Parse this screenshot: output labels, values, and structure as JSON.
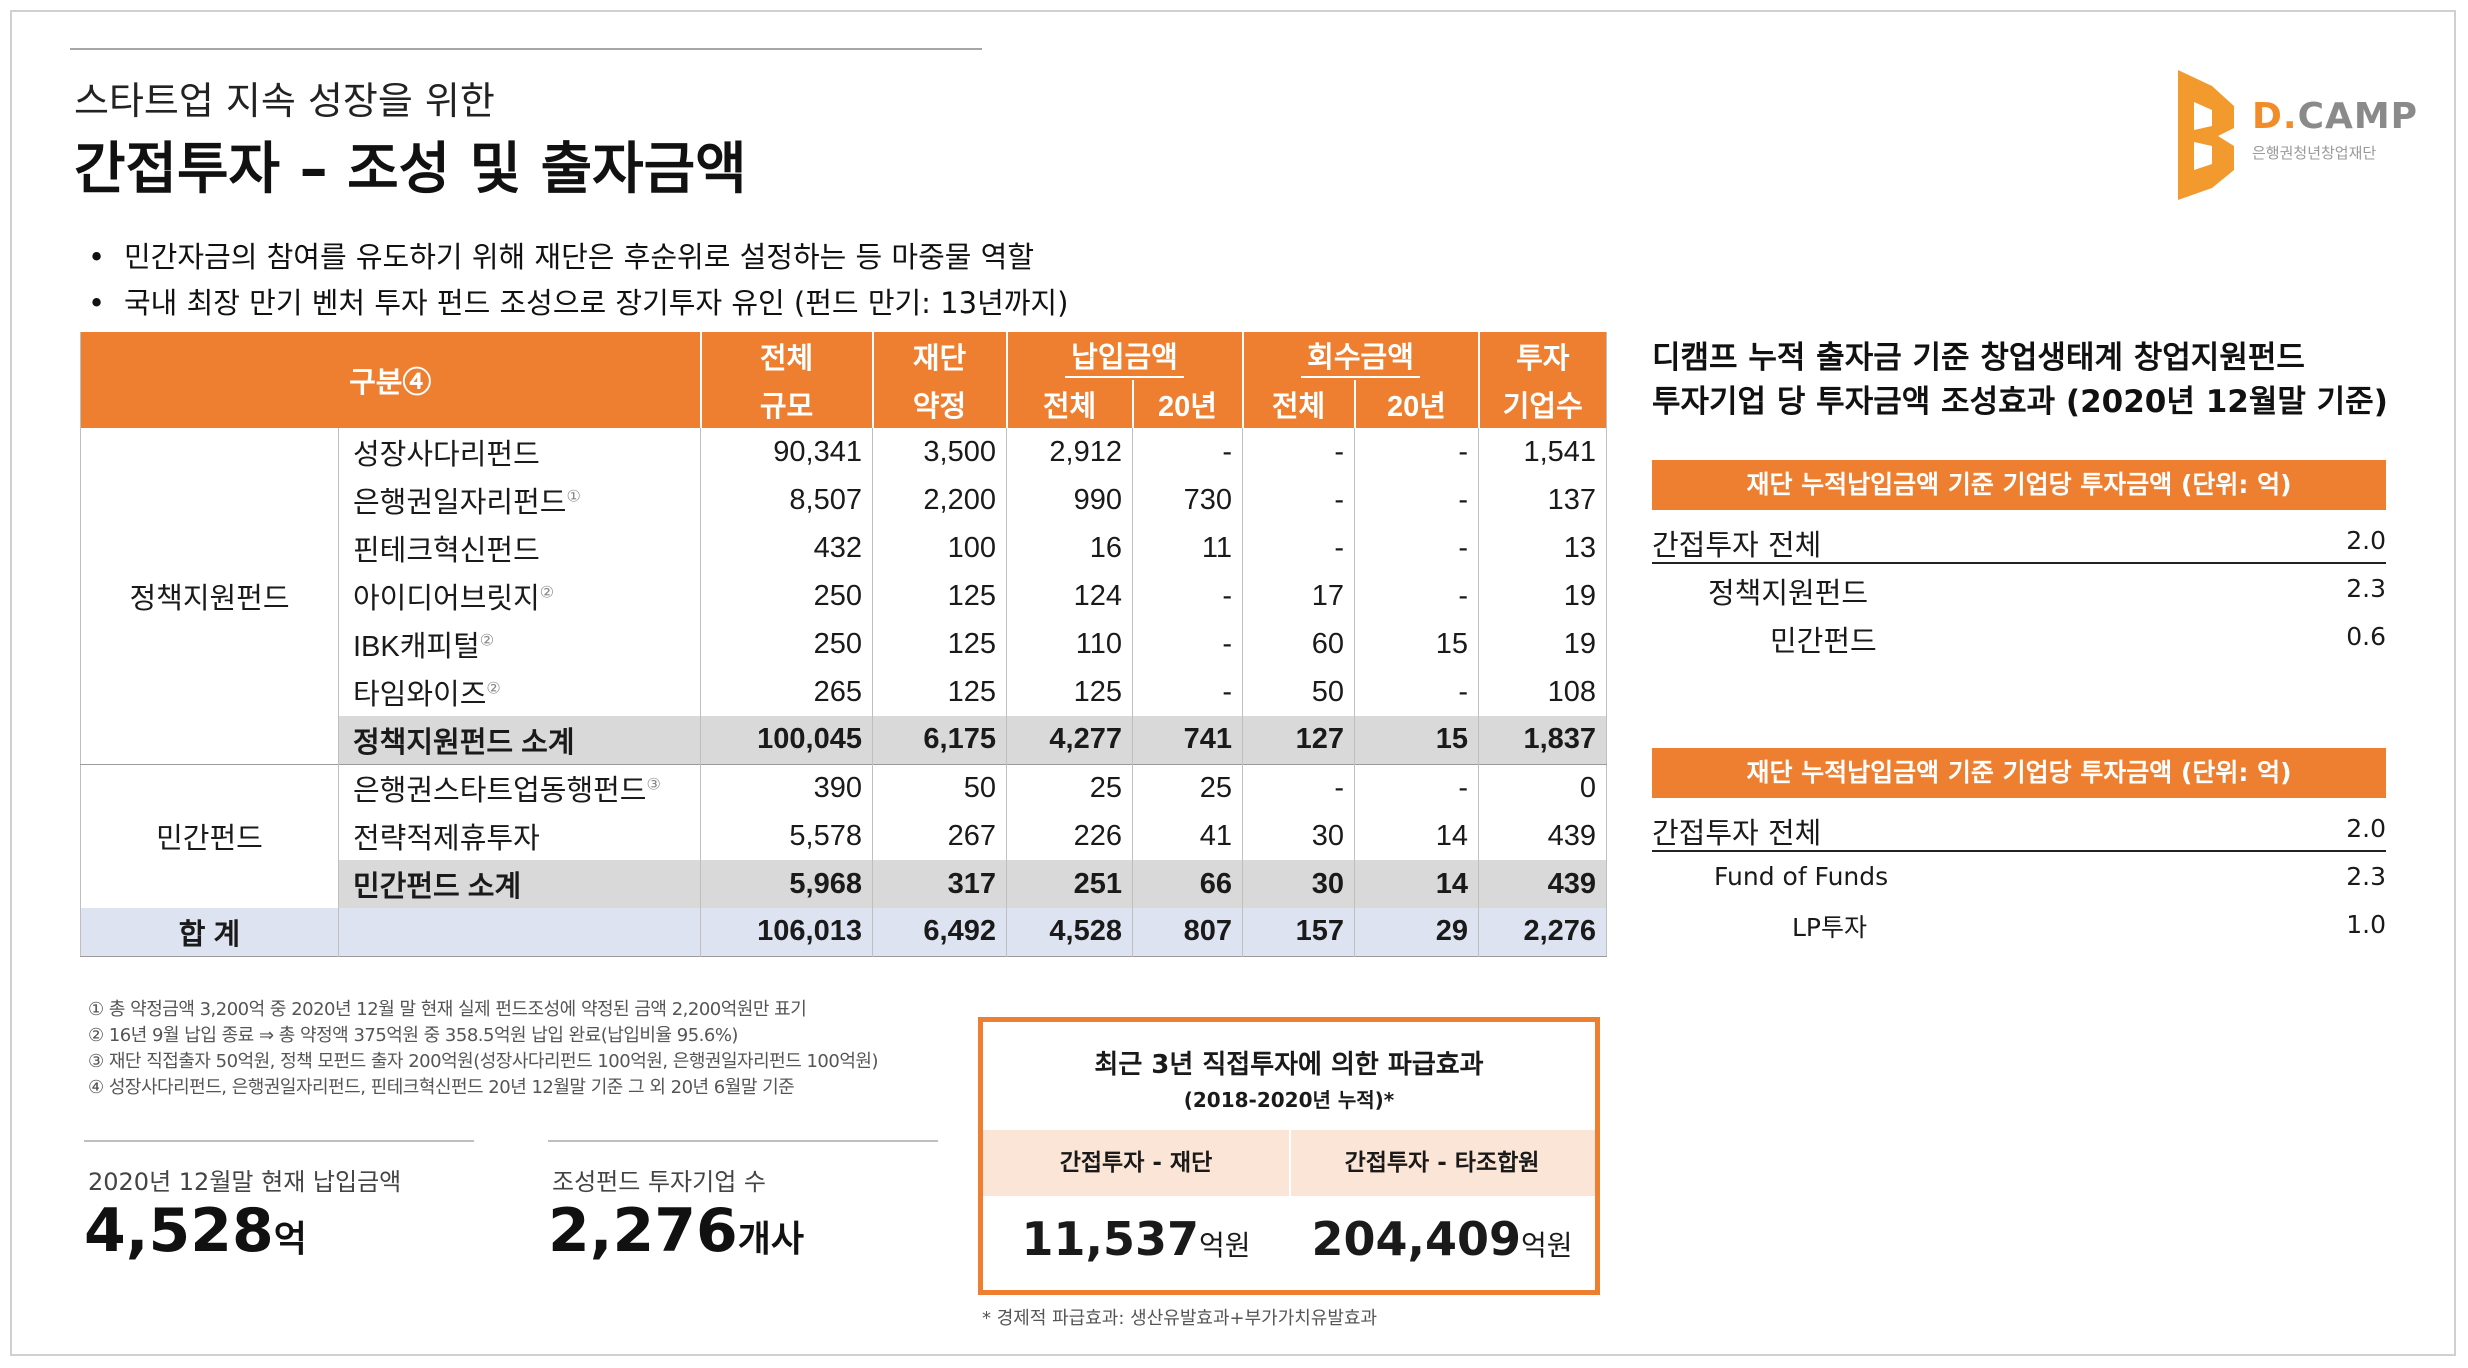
{
  "header": {
    "subtitle": "스타트업 지속 성장을 위한",
    "title": "간접투자 – 조성 및 출자금액"
  },
  "logo": {
    "brand_prefix": "D.",
    "brand_main": "CAMP",
    "org": "은행권청년창업재단",
    "icon": "dcamp-b-logo",
    "accent_color": "#ee7f30"
  },
  "bullets": [
    "민간자금의 참여를 유도하기 위해 재단은 후순위로 설정하는 등 마중물 역할",
    "국내 최장 만기 벤처 투자 펀드 조성으로 장기투자 유인 (펀드 만기: 13년까지)"
  ],
  "table": {
    "header": {
      "category": "구분④",
      "total_size_1": "전체",
      "total_size_2": "규모",
      "foundation_1": "재단",
      "foundation_2": "약정",
      "paid_in": "납입금액",
      "paid_total": "전체",
      "paid_20": "20년",
      "recovery": "회수금액",
      "recovery_total": "전체",
      "recovery_20": "20년",
      "invest_1": "투자",
      "invest_2": "기업수"
    },
    "groups": {
      "policy": "정책지원펀드",
      "private": "민간펀드",
      "total": "합 계"
    },
    "policy_rows": [
      {
        "name": "성장사다리펀드",
        "note": "",
        "size": "90,341",
        "commit": "3,500",
        "paid": "2,912",
        "paid20": "-",
        "rec": "-",
        "rec20": "-",
        "cnt": "1,541"
      },
      {
        "name": "은행권일자리펀드",
        "note": "①",
        "size": "8,507",
        "commit": "2,200",
        "paid": "990",
        "paid20": "730",
        "rec": "-",
        "rec20": "-",
        "cnt": "137"
      },
      {
        "name": "핀테크혁신펀드",
        "note": "",
        "size": "432",
        "commit": "100",
        "paid": "16",
        "paid20": "11",
        "rec": "-",
        "rec20": "-",
        "cnt": "13"
      },
      {
        "name": "아이디어브릿지",
        "note": "②",
        "size": "250",
        "commit": "125",
        "paid": "124",
        "paid20": "-",
        "rec": "17",
        "rec20": "-",
        "cnt": "19"
      },
      {
        "name": "IBK캐피털",
        "note": "②",
        "size": "250",
        "commit": "125",
        "paid": "110",
        "paid20": "-",
        "rec": "60",
        "rec20": "15",
        "cnt": "19"
      },
      {
        "name": "타임와이즈",
        "note": "②",
        "size": "265",
        "commit": "125",
        "paid": "125",
        "paid20": "-",
        "rec": "50",
        "rec20": "-",
        "cnt": "108"
      }
    ],
    "policy_subtotal": {
      "name": "정책지원펀드 소계",
      "size": "100,045",
      "commit": "6,175",
      "paid": "4,277",
      "paid20": "741",
      "rec": "127",
      "rec20": "15",
      "cnt": "1,837"
    },
    "private_rows": [
      {
        "name": "은행권스타트업동행펀드",
        "note": "③",
        "size": "390",
        "commit": "50",
        "paid": "25",
        "paid20": "25",
        "rec": "-",
        "rec20": "-",
        "cnt": "0"
      },
      {
        "name": "전략적제휴투자",
        "note": "",
        "size": "5,578",
        "commit": "267",
        "paid": "226",
        "paid20": "41",
        "rec": "30",
        "rec20": "14",
        "cnt": "439"
      }
    ],
    "private_subtotal": {
      "name": "민간펀드 소계",
      "size": "5,968",
      "commit": "317",
      "paid": "251",
      "paid20": "66",
      "rec": "30",
      "rec20": "14",
      "cnt": "439"
    },
    "grand_total": {
      "size": "106,013",
      "commit": "6,492",
      "paid": "4,528",
      "paid20": "807",
      "rec": "157",
      "rec20": "29",
      "cnt": "2,276"
    }
  },
  "right_panel": {
    "title_line1": "디캠프 누적 출자금 기준 창업생태계 창업지원펀드",
    "title_line2": "투자기업 당 투자금액 조성효과 (2020년 12월말 기준)",
    "box1": {
      "bar": "재단 누적납입금액 기준 기업당 투자금액 (단위: 억)",
      "head_label": "간접투자 전체",
      "head_value": "2.0",
      "rows": [
        {
          "label": "정책지원펀드",
          "value": "2.3"
        },
        {
          "label": "민간펀드",
          "value": "0.6"
        }
      ]
    },
    "box2": {
      "bar": "재단 누적납입금액 기준 기업당 투자금액 (단위: 억)",
      "head_label": "간접투자 전체",
      "head_value": "2.0",
      "rows": [
        {
          "label": "Fund of Funds",
          "value": "2.3"
        },
        {
          "label": "LP투자",
          "value": "1.0"
        }
      ]
    }
  },
  "notes": [
    "① 총 약정금액 3,200억 중 2020년 12월 말 현재 실제 펀드조성에  약정된 금액 2,200억원만 표기",
    "② 16년 9월 납입 종료 ⇒ 총 약정액 375억원 중 358.5억원 납입 완료(납입비율 95.6%)",
    "③ 재단 직접출자 50억원, 정책 모펀드 출자 200억원(성장사다리펀드 100억원, 은행권일자리펀드 100억원)",
    "④ 성장사다리펀드, 은행권일자리펀드, 핀테크혁신펀드 20년 12월말 기준 그 외 20년 6월말 기준"
  ],
  "stats": {
    "paid_label": "2020년 12월말 현재 납입금액",
    "paid_value": "4,528",
    "paid_unit": "억",
    "companies_label": "조성펀드 투자기업 수",
    "companies_value": "2,276",
    "companies_unit": "개사"
  },
  "impact": {
    "title": "최근 3년 직접투자에 의한 파급효과",
    "subtitle": "(2018-2020년 누적)*",
    "col1_label": "간접투자 - 재단",
    "col2_label": "간접투자 - 타조합원",
    "col1_value": "11,537",
    "col2_value": "204,409",
    "unit": "억원",
    "footnote": "* 경제적 파급효과: 생산유발효과+부가가치유발효과"
  }
}
